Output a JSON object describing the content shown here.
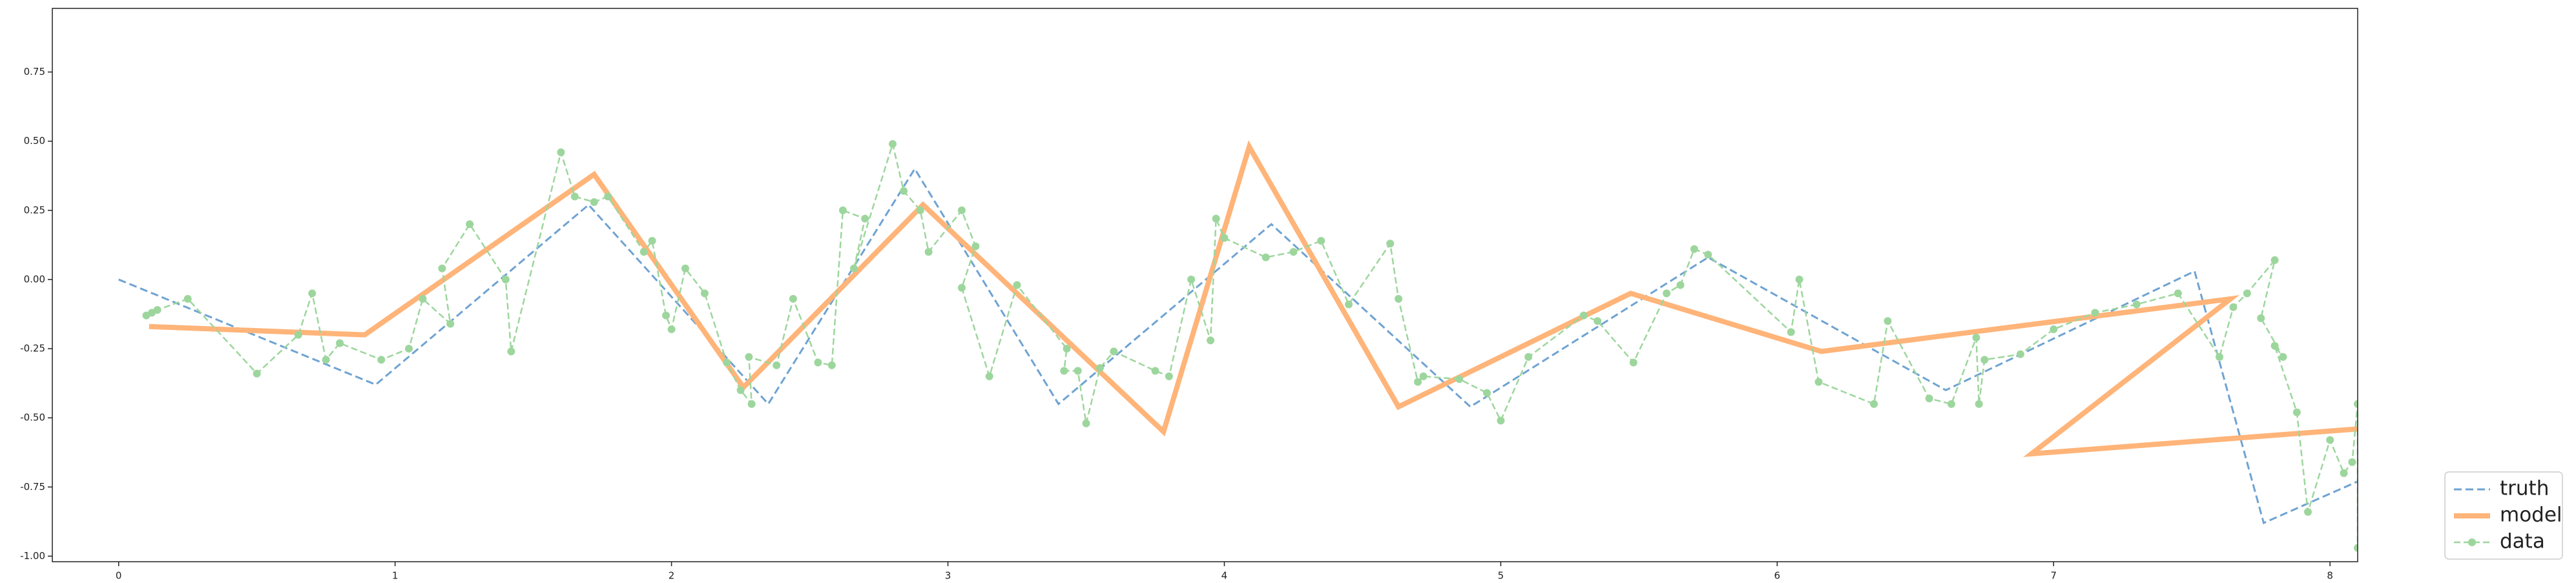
{
  "chart_data": {
    "type": "line",
    "xlim": [
      -0.24,
      8.1
    ],
    "ylim": [
      -1.02,
      0.98
    ],
    "xticks": [
      0,
      1,
      2,
      3,
      4,
      5,
      6,
      7,
      8
    ],
    "yticks": [
      {
        "value": -1.0,
        "label": "-1.00"
      },
      {
        "value": -0.75,
        "label": "-0.75"
      },
      {
        "value": -0.5,
        "label": "-0.50"
      },
      {
        "value": -0.25,
        "label": "-0.25"
      },
      {
        "value": 0.0,
        "label": "0.00"
      },
      {
        "value": 0.25,
        "label": "0.25"
      },
      {
        "value": 0.5,
        "label": "0.50"
      },
      {
        "value": 0.75,
        "label": "0.75"
      }
    ],
    "legend": "lower right",
    "series": [
      {
        "name": "truth",
        "color": "#6fa3d2",
        "linestyle": "dashed",
        "linewidth": 3,
        "x": [
          0,
          0.93,
          1.7,
          2.35,
          2.88,
          3.4,
          4.17,
          4.89,
          5.75,
          6.61,
          7.51,
          7.76,
          8.1
        ],
        "values": [
          0,
          -0.38,
          0.27,
          -0.45,
          0.4,
          -0.45,
          0.2,
          -0.46,
          0.08,
          -0.4,
          0.03,
          -0.88,
          -0.73
        ]
      },
      {
        "name": "model",
        "color": "#ffb479",
        "linestyle": "solid",
        "linewidth": 8,
        "x": [
          0.11,
          0.89,
          1.72,
          2.26,
          2.91,
          3.78,
          4.09,
          4.63,
          5.47,
          6.16,
          7.64,
          6.92,
          8.1
        ],
        "values": [
          -0.17,
          -0.2,
          0.38,
          -0.39,
          0.27,
          -0.55,
          0.48,
          -0.46,
          -0.05,
          -0.26,
          -0.07,
          -0.63,
          -0.54
        ]
      },
      {
        "name": "data",
        "color": "#9dd69d",
        "linestyle": "dashed",
        "linewidth": 2.5,
        "marker": "o",
        "x": [
          0.1,
          0.12,
          0.14,
          0.25,
          0.5,
          0.65,
          0.7,
          0.75,
          0.8,
          0.95,
          1.05,
          1.1,
          1.2,
          1.17,
          1.27,
          1.4,
          1.42,
          1.6,
          1.65,
          1.72,
          1.77,
          1.9,
          1.93,
          1.98,
          2.0,
          2.05,
          2.12,
          2.2,
          2.25,
          2.29,
          2.28,
          2.38,
          2.44,
          2.53,
          2.58,
          2.62,
          2.7,
          2.66,
          2.8,
          2.84,
          2.9,
          2.93,
          3.05,
          3.1,
          3.05,
          3.15,
          3.25,
          3.43,
          3.42,
          3.47,
          3.5,
          3.55,
          3.6,
          3.75,
          3.8,
          3.88,
          3.95,
          3.97,
          4.0,
          4.15,
          4.25,
          4.35,
          4.45,
          4.6,
          4.63,
          4.7,
          4.72,
          4.85,
          4.95,
          5.0,
          5.1,
          5.3,
          5.35,
          5.48,
          5.6,
          5.65,
          5.7,
          5.75,
          6.05,
          6.08,
          6.15,
          6.35,
          6.4,
          6.55,
          6.63,
          6.72,
          6.73,
          6.75,
          6.88,
          7.0,
          7.15,
          7.3,
          7.45,
          7.6,
          7.65,
          7.7,
          7.8,
          7.75,
          7.83,
          7.8,
          7.88,
          7.92,
          8.0,
          8.05,
          8.08,
          8.1,
          8.1
        ],
        "values": [
          -0.13,
          -0.12,
          -0.11,
          -0.07,
          -0.34,
          -0.2,
          -0.05,
          -0.29,
          -0.23,
          -0.29,
          -0.25,
          -0.07,
          -0.16,
          0.04,
          0.2,
          0.0,
          -0.26,
          0.46,
          0.3,
          0.28,
          0.3,
          0.1,
          0.14,
          -0.13,
          -0.18,
          0.04,
          -0.05,
          -0.3,
          -0.4,
          -0.45,
          -0.28,
          -0.31,
          -0.07,
          -0.3,
          -0.31,
          0.25,
          0.22,
          0.04,
          0.49,
          0.32,
          0.25,
          0.1,
          0.25,
          0.12,
          -0.03,
          -0.35,
          -0.02,
          -0.25,
          -0.33,
          -0.33,
          -0.52,
          -0.32,
          -0.26,
          -0.33,
          -0.35,
          0.0,
          -0.22,
          0.22,
          0.15,
          0.08,
          0.1,
          0.14,
          -0.09,
          0.13,
          -0.07,
          -0.37,
          -0.35,
          -0.36,
          -0.41,
          -0.51,
          -0.28,
          -0.13,
          -0.15,
          -0.3,
          -0.05,
          -0.02,
          0.11,
          0.09,
          -0.19,
          0.0,
          -0.37,
          -0.45,
          -0.15,
          -0.43,
          -0.45,
          -0.21,
          -0.45,
          -0.29,
          -0.27,
          -0.18,
          -0.12,
          -0.09,
          -0.05,
          -0.28,
          -0.1,
          -0.05,
          0.07,
          -0.14,
          -0.28,
          -0.24,
          -0.48,
          -0.84,
          -0.58,
          -0.7,
          -0.66,
          -0.45,
          -0.97
        ]
      }
    ]
  }
}
